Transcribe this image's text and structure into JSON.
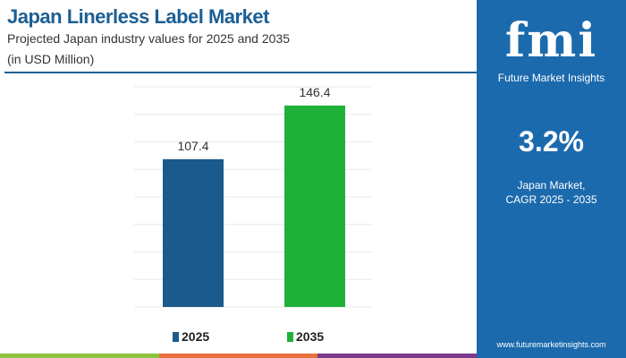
{
  "header": {
    "title": "Japan Linerless Label Market",
    "subtitle": "Projected Japan industry values for 2025 and 2035",
    "unit": "(in USD Million)"
  },
  "chart_data": {
    "type": "bar",
    "categories": [
      "2025",
      "2035"
    ],
    "values": [
      107.4,
      146.4
    ],
    "data_labels": [
      "107.4",
      "146.4"
    ],
    "colors": [
      "#1b5a8c",
      "#1fb03a"
    ],
    "ylim": [
      0,
      160
    ],
    "grid": true,
    "legend": "bottom",
    "xlabel": "",
    "ylabel": ""
  },
  "panel": {
    "logo": "fmi",
    "brand": "Future Market Insights",
    "cagr": "3.2%",
    "cagr_label_1": "Japan Market,",
    "cagr_label_2": "CAGR 2025 - 2035",
    "url": "www.futuremarketinsights.com",
    "bg": "#1b6aad"
  },
  "strip_colors": [
    "#8cc43f",
    "#e8703a",
    "#7b3a8c"
  ]
}
